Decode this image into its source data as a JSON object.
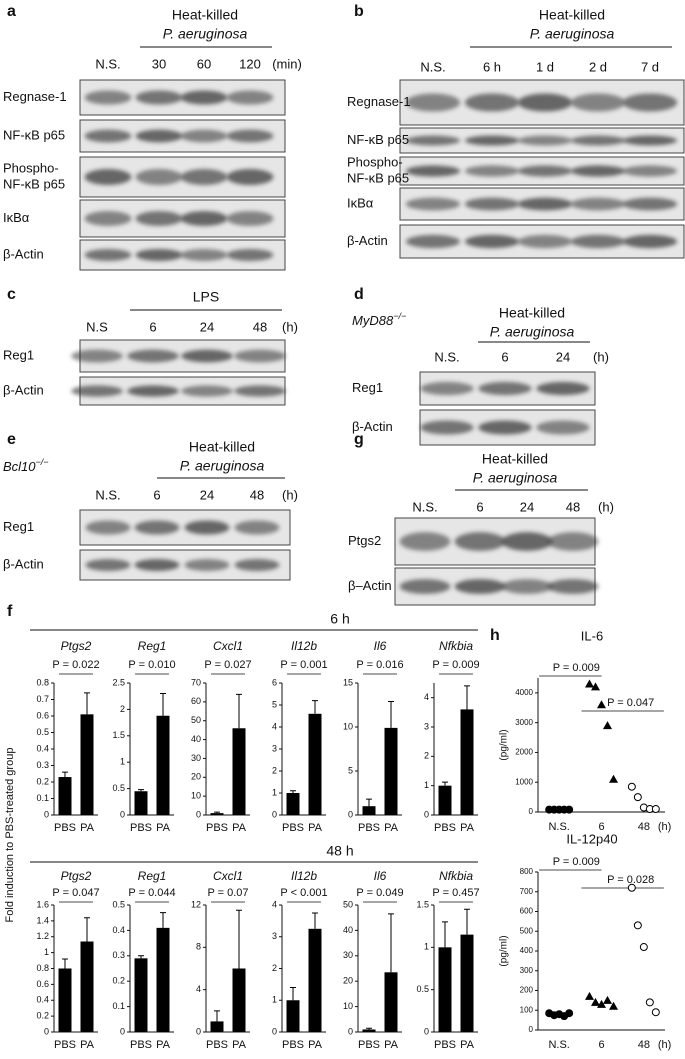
{
  "blots": [
    {
      "label": "a",
      "heading": [
        "Heat-killed",
        "P. aeruginosa"
      ],
      "lanes": [
        "N.S.",
        "30",
        "60",
        "120"
      ],
      "unit": "(min)",
      "rows": [
        [
          "Regnase-1"
        ],
        [
          "NF-κB p65"
        ],
        [
          "Phospho-",
          "NF-κB p65"
        ],
        [
          "IκBα"
        ],
        [
          "β-Actin"
        ]
      ]
    },
    {
      "label": "b",
      "heading": [
        "Heat-killed",
        "P. aeruginosa"
      ],
      "lanes": [
        "N.S.",
        "6 h",
        "1 d",
        "2 d",
        "7 d"
      ],
      "rows": [
        [
          "Regnase-1"
        ],
        [
          "NF-κB p65"
        ],
        [
          "Phospho-",
          "NF-κB p65"
        ],
        [
          "IκBα"
        ],
        [
          "β-Actin"
        ]
      ]
    },
    {
      "label": "c",
      "heading": [
        "LPS"
      ],
      "lanes": [
        "N.S",
        "6",
        "24",
        "48"
      ],
      "unit": "(h)",
      "rows": [
        [
          "Reg1"
        ],
        [
          "β-Actin"
        ]
      ]
    },
    {
      "label": "d",
      "genotype": [
        "MyD88",
        "−/−"
      ],
      "heading": [
        "Heat-killed",
        "P. aeruginosa"
      ],
      "lanes": [
        "N.S.",
        "6",
        "24"
      ],
      "unit": "(h)",
      "rows": [
        [
          "Reg1"
        ],
        [
          "β-Actin"
        ]
      ]
    },
    {
      "label": "e",
      "genotype": [
        "Bcl10",
        "−/−"
      ],
      "heading": [
        "Heat-killed",
        "P. aeruginosa"
      ],
      "lanes": [
        "N.S.",
        "6",
        "24",
        "48"
      ],
      "unit": "(h)",
      "rows": [
        [
          "Reg1"
        ],
        [
          "β-Actin"
        ]
      ]
    },
    {
      "label": "g",
      "heading": [
        "Heat-killed",
        "P. aeruginosa"
      ],
      "lanes": [
        "N.S.",
        "6",
        "24",
        "48"
      ],
      "unit": "(h)",
      "rows": [
        [
          "Ptgs2"
        ],
        [
          "β–Actin"
        ]
      ]
    }
  ],
  "panel_f": {
    "label": "f",
    "groups": [
      "6 h",
      "48 h"
    ],
    "ylabel": "Fold induction to PBS-treated group"
  },
  "chart_data": [
    {
      "type": "bar",
      "title": "Ptgs2",
      "annotation": "P = 0.022",
      "categories": [
        "PBS",
        "PA"
      ],
      "values": [
        0.23,
        0.61
      ],
      "errors": [
        0.03,
        0.13
      ],
      "color": "#000000",
      "ylim": [
        0,
        0.8
      ],
      "yticks": [
        0,
        0.1,
        0.2,
        0.3,
        0.4,
        0.5,
        0.6,
        0.7,
        0.8
      ]
    },
    {
      "type": "bar",
      "title": "Reg1",
      "annotation": "P = 0.010",
      "categories": [
        "PBS",
        "PA"
      ],
      "values": [
        0.45,
        1.88
      ],
      "errors": [
        0.03,
        0.42
      ],
      "color": "#000000",
      "ylim": [
        0,
        2.5
      ],
      "yticks": [
        0,
        0.5,
        1,
        1.5,
        2,
        2.5
      ]
    },
    {
      "type": "bar",
      "title": "Cxcl1",
      "annotation": "P = 0.027",
      "categories": [
        "PBS",
        "PA"
      ],
      "values": [
        1,
        46
      ],
      "errors": [
        0.5,
        18
      ],
      "color": "#000000",
      "ylim": [
        0,
        70
      ],
      "yticks": [
        0,
        10,
        20,
        30,
        40,
        50,
        60,
        70
      ]
    },
    {
      "type": "bar",
      "title": "Il12b",
      "annotation": "P = 0.001",
      "categories": [
        "PBS",
        "PA"
      ],
      "values": [
        1,
        4.6
      ],
      "errors": [
        0.1,
        0.6
      ],
      "color": "#000000",
      "ylim": [
        0,
        6
      ],
      "yticks": [
        0,
        1,
        2,
        3,
        4,
        5,
        6
      ]
    },
    {
      "type": "bar",
      "title": "Il6",
      "annotation": "P = 0.016",
      "categories": [
        "PBS",
        "PA"
      ],
      "values": [
        1,
        9.9
      ],
      "errors": [
        0.8,
        3
      ],
      "color": "#000000",
      "ylim": [
        0,
        15
      ],
      "yticks": [
        0,
        5,
        10,
        15
      ]
    },
    {
      "type": "bar",
      "title": "Nfkbia",
      "annotation": "P = 0.009",
      "categories": [
        "PBS",
        "PA"
      ],
      "values": [
        1,
        3.6
      ],
      "errors": [
        0.12,
        0.8
      ],
      "color": "#000000",
      "ylim": [
        0,
        4.5
      ],
      "yticks": [
        0,
        1,
        2,
        3,
        4
      ]
    },
    {
      "type": "bar",
      "title": "Ptgs2",
      "annotation": "P = 0.047",
      "categories": [
        "PBS",
        "PA"
      ],
      "values": [
        0.8,
        1.14
      ],
      "errors": [
        0.12,
        0.3
      ],
      "color": "#000000",
      "ylim": [
        0,
        1.6
      ],
      "yticks": [
        0,
        0.2,
        0.4,
        0.6,
        0.8,
        1,
        1.2,
        1.4,
        1.6
      ]
    },
    {
      "type": "bar",
      "title": "Reg1",
      "annotation": "P = 0.044",
      "categories": [
        "PBS",
        "PA"
      ],
      "values": [
        0.29,
        0.41
      ],
      "errors": [
        0.01,
        0.06
      ],
      "color": "#000000",
      "ylim": [
        0,
        0.5
      ],
      "yticks": [
        0,
        0.1,
        0.2,
        0.3,
        0.4,
        0.5
      ]
    },
    {
      "type": "bar",
      "title": "Cxcl1",
      "annotation": "P = 0.07",
      "categories": [
        "PBS",
        "PA"
      ],
      "values": [
        1,
        6
      ],
      "errors": [
        1,
        5.5
      ],
      "color": "#000000",
      "ylim": [
        0,
        12
      ],
      "yticks": [
        0,
        4,
        8,
        12
      ]
    },
    {
      "type": "bar",
      "title": "Il12b",
      "annotation": "P < 0.001",
      "categories": [
        "PBS",
        "PA"
      ],
      "values": [
        1,
        3.25
      ],
      "errors": [
        0.4,
        0.5
      ],
      "color": "#000000",
      "ylim": [
        0,
        4
      ],
      "yticks": [
        0,
        1,
        2,
        3,
        4
      ]
    },
    {
      "type": "bar",
      "title": "Il6",
      "annotation": "P = 0.049",
      "categories": [
        "PBS",
        "PA"
      ],
      "values": [
        1,
        23.5
      ],
      "errors": [
        0.5,
        23
      ],
      "color": "#000000",
      "ylim": [
        0,
        50
      ],
      "yticks": [
        0,
        10,
        20,
        30,
        40,
        50
      ]
    },
    {
      "type": "bar",
      "title": "Nfkbia",
      "annotation": "P = 0.457",
      "categories": [
        "PBS",
        "PA"
      ],
      "values": [
        1,
        1.15
      ],
      "errors": [
        0.3,
        0.3
      ],
      "color": "#000000",
      "ylim": [
        0,
        1.5
      ],
      "yticks": [
        0,
        0.5,
        1,
        1.5
      ]
    },
    {
      "type": "scatter",
      "panel": "h",
      "title": "IL-6",
      "ylabel": "(pg/ml)",
      "categories": [
        "N.S.",
        "6",
        "48"
      ],
      "x_unit": "(h)",
      "values": [
        [
          80,
          80,
          80,
          80,
          80
        ],
        [
          4300,
          4200,
          3600,
          2900,
          1100
        ],
        [
          850,
          500,
          150,
          100,
          100
        ]
      ],
      "markers": [
        "filled-circle",
        "filled-triangle",
        "open-circle"
      ],
      "color": "#000000",
      "ylim": [
        0,
        4500
      ],
      "yticks": [
        0,
        1000,
        2000,
        3000,
        4000
      ],
      "annotations": [
        "P = 0.009",
        "P = 0.047"
      ]
    },
    {
      "type": "scatter",
      "title": "IL-12p40",
      "ylabel": "(pg/ml)",
      "categories": [
        "N.S.",
        "6",
        "48"
      ],
      "x_unit": "(h)",
      "values": [
        [
          85,
          75,
          80,
          70,
          85
        ],
        [
          170,
          140,
          130,
          150,
          120
        ],
        [
          720,
          530,
          420,
          140,
          90
        ]
      ],
      "markers": [
        "filled-circle",
        "filled-triangle",
        "open-circle"
      ],
      "color": "#000000",
      "ylim": [
        0,
        800
      ],
      "yticks": [
        0,
        100,
        200,
        300,
        400,
        500,
        600,
        700,
        800
      ],
      "annotations": [
        "P = 0.009",
        "P = 0.028"
      ]
    }
  ]
}
